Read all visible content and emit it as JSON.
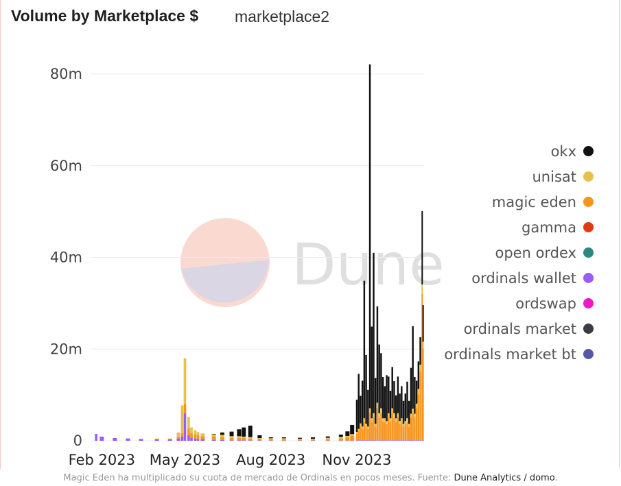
{
  "header": {
    "title": "Volume by Marketplace $",
    "subtitle": "marketplace2"
  },
  "watermark": {
    "text": "Dune"
  },
  "caption": {
    "text": "Magic Eden ha multiplicado su cuota de mercado de Ordinals en pocos meses. Fuente: ",
    "source": "Dune Analytics / domo",
    "end": "."
  },
  "chart_data": {
    "type": "bar",
    "stacked": true,
    "title": "Volume by Marketplace $",
    "xlabel": "",
    "ylabel": "",
    "ylim": [
      0,
      80000000
    ],
    "xlim": [
      "2023-01-20",
      "2024-01-12"
    ],
    "y_ticks": [
      {
        "value": 0,
        "label": "0"
      },
      {
        "value": 20000000,
        "label": "20m"
      },
      {
        "value": 40000000,
        "label": "40m"
      },
      {
        "value": 60000000,
        "label": "60m"
      },
      {
        "value": 80000000,
        "label": "80m"
      }
    ],
    "x_ticks": [
      {
        "value": "2023-02-01",
        "label": "Feb 2023"
      },
      {
        "value": "2023-05-01",
        "label": "May 2023"
      },
      {
        "value": "2023-08-01",
        "label": "Aug 2023"
      },
      {
        "value": "2023-11-01",
        "label": "Nov 2023"
      }
    ],
    "grid": true,
    "legend_position": "right",
    "legend": [
      {
        "name": "okx",
        "color": "#111111"
      },
      {
        "name": "unisat",
        "color": "#e8c14d"
      },
      {
        "name": "magic eden",
        "color": "#f7941d"
      },
      {
        "name": "gamma",
        "color": "#e03a12"
      },
      {
        "name": "open ordex",
        "color": "#2a8a7e"
      },
      {
        "name": "ordinals wallet",
        "color": "#9b5cf6"
      },
      {
        "name": "ordswap",
        "color": "#ee18c8"
      },
      {
        "name": "ordinals market",
        "color": "#3c3c46"
      },
      {
        "name": "ordinals market bt",
        "color": "#5558a8"
      }
    ],
    "series_colors": {
      "okx": "#111111",
      "unisat": "#e8c14d",
      "magic_eden": "#f7941d",
      "ordinals_wallet": "#9b5cf6"
    },
    "x": [
      "2023-01-26",
      "2023-02-01",
      "2023-02-15",
      "2023-03-01",
      "2023-03-15",
      "2023-04-01",
      "2023-04-15",
      "2023-04-24",
      "2023-04-28",
      "2023-05-01",
      "2023-05-05",
      "2023-05-08",
      "2023-05-12",
      "2023-05-15",
      "2023-05-20",
      "2023-06-01",
      "2023-06-10",
      "2023-06-20",
      "2023-06-28",
      "2023-07-03",
      "2023-07-10",
      "2023-07-20",
      "2023-08-01",
      "2023-08-15",
      "2023-09-01",
      "2023-09-15",
      "2023-10-01",
      "2023-10-15",
      "2023-10-22",
      "2023-10-27",
      "2023-11-01",
      "2023-11-03",
      "2023-11-05",
      "2023-11-07",
      "2023-11-09",
      "2023-11-11",
      "2023-11-13",
      "2023-11-15",
      "2023-11-17",
      "2023-11-19",
      "2023-11-21",
      "2023-11-23",
      "2023-11-25",
      "2023-11-27",
      "2023-11-29",
      "2023-12-01",
      "2023-12-03",
      "2023-12-05",
      "2023-12-07",
      "2023-12-09",
      "2023-12-11",
      "2023-12-13",
      "2023-12-15",
      "2023-12-17",
      "2023-12-19",
      "2023-12-21",
      "2023-12-23",
      "2023-12-25",
      "2023-12-27",
      "2023-12-29",
      "2023-12-31",
      "2024-01-02",
      "2024-01-04",
      "2024-01-06",
      "2024-01-08",
      "2024-01-10",
      "2024-01-11"
    ],
    "series": [
      {
        "name": "ordinals wallet",
        "values": [
          1500000,
          900000,
          600000,
          500000,
          400000,
          300000,
          300000,
          500000,
          900000,
          6000000,
          1200000,
          700000,
          500000,
          400000,
          300000,
          200000,
          200000,
          100000,
          100000,
          100000,
          100000,
          100000,
          50000,
          50000,
          50000,
          50000,
          50000,
          50000,
          50000,
          50000,
          50000,
          100000,
          100000,
          100000,
          100000,
          100000,
          100000,
          100000,
          100000,
          100000,
          100000,
          100000,
          100000,
          100000,
          100000,
          100000,
          100000,
          100000,
          100000,
          100000,
          100000,
          100000,
          100000,
          100000,
          100000,
          100000,
          100000,
          100000,
          100000,
          100000,
          100000,
          100000,
          100000,
          100000,
          100000,
          100000,
          100000
        ]
      },
      {
        "name": "magic eden",
        "values": [
          0,
          0,
          0,
          0,
          0,
          0,
          0,
          300000,
          800000,
          2000000,
          1500000,
          1000000,
          900000,
          800000,
          700000,
          700000,
          600000,
          500000,
          500000,
          500000,
          400000,
          300000,
          300000,
          300000,
          200000,
          200000,
          300000,
          400000,
          700000,
          1000000,
          1500000,
          2000000,
          3000000,
          2500000,
          4000000,
          3000000,
          2500000,
          6000000,
          4000000,
          5000000,
          3000000,
          7000000,
          5000000,
          6000000,
          4000000,
          4000000,
          3500000,
          5000000,
          4000000,
          6000000,
          5000000,
          4000000,
          5000000,
          3500000,
          4000000,
          3000000,
          3500000,
          4000000,
          3000000,
          5000000,
          6000000,
          5000000,
          7000000,
          10000000,
          15000000,
          32000000,
          20000000
        ]
      },
      {
        "name": "unisat",
        "values": [
          0,
          0,
          0,
          0,
          0,
          200000,
          200000,
          1000000,
          6000000,
          10000000,
          2500000,
          1200000,
          900000,
          700000,
          600000,
          500000,
          500000,
          400000,
          400000,
          300000,
          300000,
          200000,
          200000,
          200000,
          200000,
          200000,
          300000,
          400000,
          300000,
          400000,
          400000,
          500000,
          700000,
          500000,
          800000,
          600000,
          500000,
          1000000,
          800000,
          900000,
          600000,
          1200000,
          900000,
          1000000,
          800000,
          800000,
          700000,
          900000,
          800000,
          1000000,
          900000,
          800000,
          900000,
          700000,
          800000,
          600000,
          700000,
          800000,
          600000,
          800000,
          900000,
          800000,
          1000000,
          1200000,
          1500000,
          2000000,
          1500000
        ]
      },
      {
        "name": "okx",
        "values": [
          0,
          0,
          0,
          0,
          0,
          0,
          0,
          0,
          0,
          0,
          0,
          0,
          0,
          0,
          0,
          100000,
          500000,
          1000000,
          1500000,
          2000000,
          2500000,
          600000,
          200000,
          200000,
          200000,
          300000,
          300000,
          500000,
          1000000,
          2000000,
          7000000,
          12000000,
          6000000,
          10000000,
          30000000,
          15000000,
          8000000,
          75000000,
          20000000,
          35000000,
          10000000,
          21000000,
          15000000,
          12000000,
          9000000,
          7000000,
          10000000,
          8000000,
          6000000,
          9000000,
          7000000,
          5000000,
          8000000,
          6000000,
          7000000,
          5000000,
          6000000,
          8000000,
          5000000,
          10000000,
          18000000,
          8000000,
          5000000,
          6000000,
          6000000,
          16000000,
          8000000
        ]
      }
    ]
  }
}
